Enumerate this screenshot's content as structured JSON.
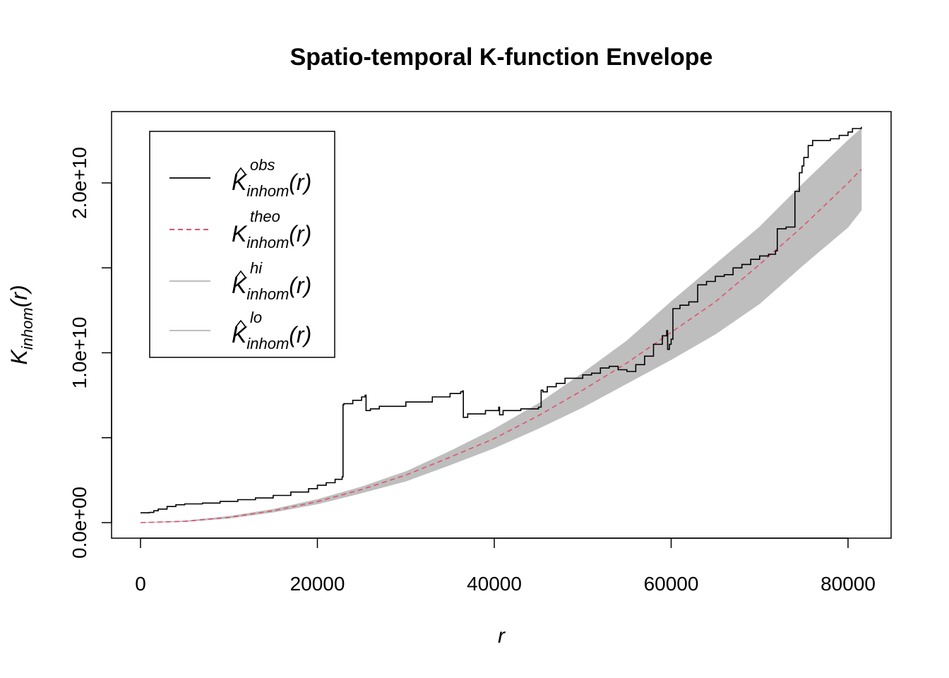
{
  "chart_data": {
    "type": "line",
    "title": "Spatio-temporal K-function Envelope",
    "xlabel": "r",
    "ylabel": {
      "base": "K",
      "sub": "inhom",
      "arg": "(r)"
    },
    "xlim": [
      0,
      81500
    ],
    "ylim": [
      -1000000000.0,
      23500000000.0
    ],
    "x_ticks": [
      {
        "value": 0,
        "label": "0"
      },
      {
        "value": 20000,
        "label": "20000"
      },
      {
        "value": 40000,
        "label": "40000"
      },
      {
        "value": 60000,
        "label": "60000"
      },
      {
        "value": 80000,
        "label": "80000"
      }
    ],
    "y_ticks": [
      {
        "value": 0,
        "label": "0.0e+00"
      },
      {
        "value": 5000000000.0,
        "label": ""
      },
      {
        "value": 10000000000.0,
        "label": "1.0e+10"
      },
      {
        "value": 15000000000.0,
        "label": ""
      },
      {
        "value": 20000000000.0,
        "label": "2.0e+10"
      }
    ],
    "grid": false,
    "legend_position": "top-left",
    "legend": [
      {
        "base": "K",
        "hat": true,
        "sup": "obs",
        "sub": "inhom",
        "arg": "(r)",
        "style": "solid",
        "color": "#000000"
      },
      {
        "base": "K",
        "hat": false,
        "sup": "theo",
        "sub": "inhom",
        "arg": "(r)",
        "style": "dashed",
        "color": "#DF536B"
      },
      {
        "base": "K",
        "hat": true,
        "sup": "hi",
        "sub": "inhom",
        "arg": "(r)",
        "style": "solid",
        "color": "#BEBEBE"
      },
      {
        "base": "K",
        "hat": true,
        "sup": "lo",
        "sub": "inhom",
        "arg": "(r)",
        "style": "solid",
        "color": "#BEBEBE"
      }
    ],
    "colors": {
      "obs": "#000000",
      "theo": "#DF536B",
      "envelope": "#BEBEBE"
    },
    "series": {
      "obs": {
        "x": [
          0,
          1000,
          1500,
          2000,
          3000,
          4000,
          5000,
          7000,
          9000,
          11000,
          13000,
          15000,
          17000,
          19000,
          20000,
          21000,
          22000,
          22800,
          22900,
          23000,
          24000,
          25000,
          25400,
          25500,
          26000,
          27000,
          30000,
          33000,
          35000,
          36200,
          36400,
          36500,
          37000,
          39000,
          40500,
          40600,
          41000,
          43000,
          45000,
          45300,
          45500,
          46000,
          47000,
          48000,
          50000,
          51000,
          52000,
          53000,
          54000,
          55000,
          56000,
          57000,
          58000,
          59000,
          59500,
          59600,
          59800,
          60000,
          60200,
          61000,
          62000,
          63000,
          64000,
          65000,
          66000,
          67000,
          68000,
          69000,
          70000,
          71000,
          71800,
          72000,
          73000,
          74000,
          74500,
          74800,
          75000,
          75500,
          76000,
          78000,
          79000,
          80000,
          80500,
          81500
        ],
        "y": [
          580000000.0,
          600000000.0,
          700000000.0,
          800000000.0,
          950000000.0,
          1050000000.0,
          1100000000.0,
          1150000000.0,
          1250000000.0,
          1350000000.0,
          1450000000.0,
          1600000000.0,
          1800000000.0,
          2000000000.0,
          2200000000.0,
          2350000000.0,
          2550000000.0,
          2700000000.0,
          6950000000.0,
          7000000000.0,
          7200000000.0,
          7400000000.0,
          7500000000.0,
          6600000000.0,
          6700000000.0,
          6850000000.0,
          7100000000.0,
          7400000000.0,
          7600000000.0,
          7700000000.0,
          7750000000.0,
          6200000000.0,
          6400000000.0,
          6600000000.0,
          6800000000.0,
          6350000000.0,
          6600000000.0,
          6700000000.0,
          6800000000.0,
          7800000000.0,
          7700000000.0,
          8000000000.0,
          8200000000.0,
          8500000000.0,
          8700000000.0,
          8800000000.0,
          9100000000.0,
          9200000000.0,
          9000000000.0,
          8900000000.0,
          9300000000.0,
          9800000000.0,
          10500000000.0,
          11000000000.0,
          11300000000.0,
          10200000000.0,
          10500000000.0,
          10800000000.0,
          12600000000.0,
          12800000000.0,
          13000000000.0,
          14000000000.0,
          14200000000.0,
          14500000000.0,
          14600000000.0,
          15000000000.0,
          15200000000.0,
          15500000000.0,
          15700000000.0,
          15800000000.0,
          16000000000.0,
          17300000000.0,
          17400000000.0,
          19500000000.0,
          20600000000.0,
          21000000000.0,
          21500000000.0,
          22200000000.0,
          22500000000.0,
          22600000000.0,
          22800000000.0,
          23000000000.0,
          23200000000.0,
          23300000000.0
        ]
      },
      "theo": {
        "x": [
          0,
          5000,
          10000,
          15000,
          20000,
          25000,
          30000,
          35000,
          40000,
          45000,
          50000,
          55000,
          60000,
          65000,
          70000,
          75000,
          80000,
          81500
        ],
        "y": [
          0,
          80000000.0,
          310000000.0,
          700000000.0,
          1240000000.0,
          1950000000.0,
          2800000000.0,
          3850000000.0,
          4950000000.0,
          6300000000.0,
          7800000000.0,
          9400000000.0,
          11200000000.0,
          13000000000.0,
          15200000000.0,
          17500000000.0,
          20000000000.0,
          20800000000.0
        ]
      },
      "envelope_hi": {
        "x": [
          0,
          5000,
          10000,
          15000,
          20000,
          25000,
          30000,
          35000,
          40000,
          45000,
          50000,
          55000,
          60000,
          65000,
          70000,
          75000,
          80000,
          81500
        ],
        "y": [
          0,
          100000000.0,
          360000000.0,
          780000000.0,
          1360000000.0,
          2100000000.0,
          3000000000.0,
          4200000000.0,
          5500000000.0,
          7000000000.0,
          8800000000.0,
          10700000000.0,
          13000000000.0,
          15200000000.0,
          17400000000.0,
          20000000000.0,
          22500000000.0,
          23200000000.0
        ]
      },
      "envelope_lo": {
        "x": [
          0,
          5000,
          10000,
          15000,
          20000,
          25000,
          30000,
          35000,
          40000,
          45000,
          50000,
          55000,
          60000,
          65000,
          70000,
          75000,
          80000,
          81500
        ],
        "y": [
          0,
          60000000.0,
          260000000.0,
          620000000.0,
          1100000000.0,
          1750000000.0,
          2450000000.0,
          3400000000.0,
          4400000000.0,
          5550000000.0,
          6800000000.0,
          8200000000.0,
          9600000000.0,
          11100000000.0,
          12900000000.0,
          15200000000.0,
          17400000000.0,
          18400000000.0
        ]
      }
    }
  }
}
